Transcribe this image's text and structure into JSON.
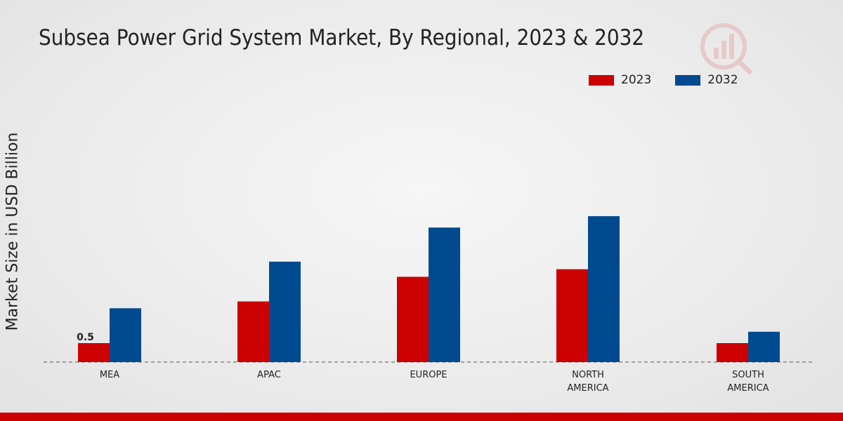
{
  "colors": {
    "series_2023": "#cc0000",
    "series_2032": "#004a8f",
    "footer": "#cc0000"
  },
  "logo": {
    "icon": "market-research-logo-icon"
  },
  "chart_data": {
    "type": "bar",
    "title": "Subsea Power Grid System Market, By Regional, 2023 & 2032",
    "xlabel": "",
    "ylabel": "Market Size in USD Billion",
    "ylim": [
      0,
      5
    ],
    "grid": false,
    "legend_position": "top-right",
    "categories": [
      [
        "MEA"
      ],
      [
        "APAC"
      ],
      [
        "EUROPE"
      ],
      [
        "NORTH",
        "AMERICA"
      ],
      [
        "SOUTH",
        "AMERICA"
      ]
    ],
    "series": [
      {
        "name": "2023",
        "values": [
          0.5,
          1.6,
          2.25,
          2.45,
          0.5
        ]
      },
      {
        "name": "2032",
        "values": [
          1.42,
          2.65,
          3.55,
          3.85,
          0.8
        ]
      }
    ],
    "annotations": [
      {
        "series": 0,
        "category": 0,
        "text": "0.5"
      }
    ]
  }
}
